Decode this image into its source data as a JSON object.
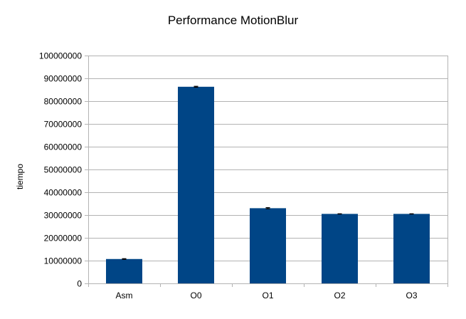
{
  "chart_data": {
    "type": "bar",
    "title": "Performance MotionBlur",
    "xlabel": "",
    "ylabel": "tiempo",
    "categories": [
      "Asm",
      "O0",
      "O1",
      "O2",
      "O3"
    ],
    "values": [
      10700000,
      86300000,
      33000000,
      30500000,
      30500000
    ],
    "error": [
      150000,
      200000,
      250000,
      60000,
      60000
    ],
    "ylim": [
      0,
      100000000
    ],
    "yticks": [
      0,
      10000000,
      20000000,
      30000000,
      40000000,
      50000000,
      60000000,
      70000000,
      80000000,
      90000000,
      100000000
    ],
    "grid": true,
    "legend": "none",
    "bar_color": "#004586",
    "grid_color": "#b3b3b3"
  }
}
